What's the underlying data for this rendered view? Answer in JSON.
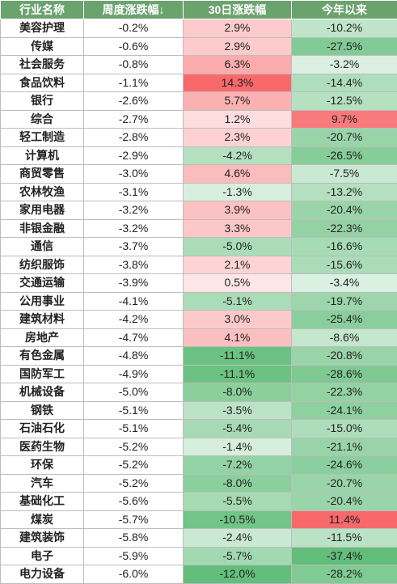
{
  "headers": [
    "行业名称",
    "周度涨跌幅↓",
    "30日涨跌幅",
    "今年以来"
  ],
  "rows": [
    {
      "name": "美容护理",
      "week": "-0.2%",
      "d30": "2.9%",
      "ytd": "-10.2%"
    },
    {
      "name": "传媒",
      "week": "-0.6%",
      "d30": "2.9%",
      "ytd": "-27.5%"
    },
    {
      "name": "社会服务",
      "week": "-0.8%",
      "d30": "6.3%",
      "ytd": "-3.2%"
    },
    {
      "name": "食品饮料",
      "week": "-1.1%",
      "d30": "14.3%",
      "ytd": "-14.4%"
    },
    {
      "name": "银行",
      "week": "-2.6%",
      "d30": "5.7%",
      "ytd": "-12.5%"
    },
    {
      "name": "综合",
      "week": "-2.7%",
      "d30": "1.2%",
      "ytd": "9.7%"
    },
    {
      "name": "轻工制造",
      "week": "-2.8%",
      "d30": "2.3%",
      "ytd": "-20.7%"
    },
    {
      "name": "计算机",
      "week": "-2.9%",
      "d30": "-4.2%",
      "ytd": "-26.5%"
    },
    {
      "name": "商贸零售",
      "week": "-3.0%",
      "d30": "4.6%",
      "ytd": "-7.5%"
    },
    {
      "name": "农林牧渔",
      "week": "-3.1%",
      "d30": "-1.3%",
      "ytd": "-13.2%"
    },
    {
      "name": "家用电器",
      "week": "-3.2%",
      "d30": "3.9%",
      "ytd": "-20.4%"
    },
    {
      "name": "非银金融",
      "week": "-3.2%",
      "d30": "3.3%",
      "ytd": "-22.3%"
    },
    {
      "name": "通信",
      "week": "-3.7%",
      "d30": "-5.0%",
      "ytd": "-16.6%"
    },
    {
      "name": "纺织服饰",
      "week": "-3.8%",
      "d30": "2.1%",
      "ytd": "-15.6%"
    },
    {
      "name": "交通运输",
      "week": "-3.9%",
      "d30": "0.5%",
      "ytd": "-3.4%"
    },
    {
      "name": "公用事业",
      "week": "-4.1%",
      "d30": "-5.1%",
      "ytd": "-19.7%"
    },
    {
      "name": "建筑材料",
      "week": "-4.2%",
      "d30": "3.0%",
      "ytd": "-25.4%"
    },
    {
      "name": "房地产",
      "week": "-4.7%",
      "d30": "4.1%",
      "ytd": "-8.6%"
    },
    {
      "name": "有色金属",
      "week": "-4.8%",
      "d30": "-11.1%",
      "ytd": "-20.8%"
    },
    {
      "name": "国防军工",
      "week": "-4.9%",
      "d30": "-11.1%",
      "ytd": "-28.6%"
    },
    {
      "name": "机械设备",
      "week": "-5.0%",
      "d30": "-8.0%",
      "ytd": "-22.3%"
    },
    {
      "name": "钢铁",
      "week": "-5.1%",
      "d30": "-3.5%",
      "ytd": "-24.1%"
    },
    {
      "name": "石油石化",
      "week": "-5.1%",
      "d30": "-5.4%",
      "ytd": "-15.0%"
    },
    {
      "name": "医药生物",
      "week": "-5.2%",
      "d30": "-1.4%",
      "ytd": "-21.1%"
    },
    {
      "name": "环保",
      "week": "-5.2%",
      "d30": "-7.2%",
      "ytd": "-24.6%"
    },
    {
      "name": "汽车",
      "week": "-5.2%",
      "d30": "-8.0%",
      "ytd": "-20.7%"
    },
    {
      "name": "基础化工",
      "week": "-5.6%",
      "d30": "-5.5%",
      "ytd": "-20.4%"
    },
    {
      "name": "煤炭",
      "week": "-5.7%",
      "d30": "-10.5%",
      "ytd": "11.4%"
    },
    {
      "name": "建筑装饰",
      "week": "-5.8%",
      "d30": "-2.4%",
      "ytd": "-11.5%"
    },
    {
      "name": "电子",
      "week": "-5.9%",
      "d30": "-5.7%",
      "ytd": "-37.4%"
    },
    {
      "name": "电力设备",
      "week": "-6.0%",
      "d30": "-12.0%",
      "ytd": "-28.2%"
    }
  ],
  "colors": {
    "header_bg": "#6aa36e",
    "header_text": "#ffffff",
    "positive_strong": "#f8696b",
    "negative_strong": "#63be7b",
    "neutral": "#ffffff"
  }
}
